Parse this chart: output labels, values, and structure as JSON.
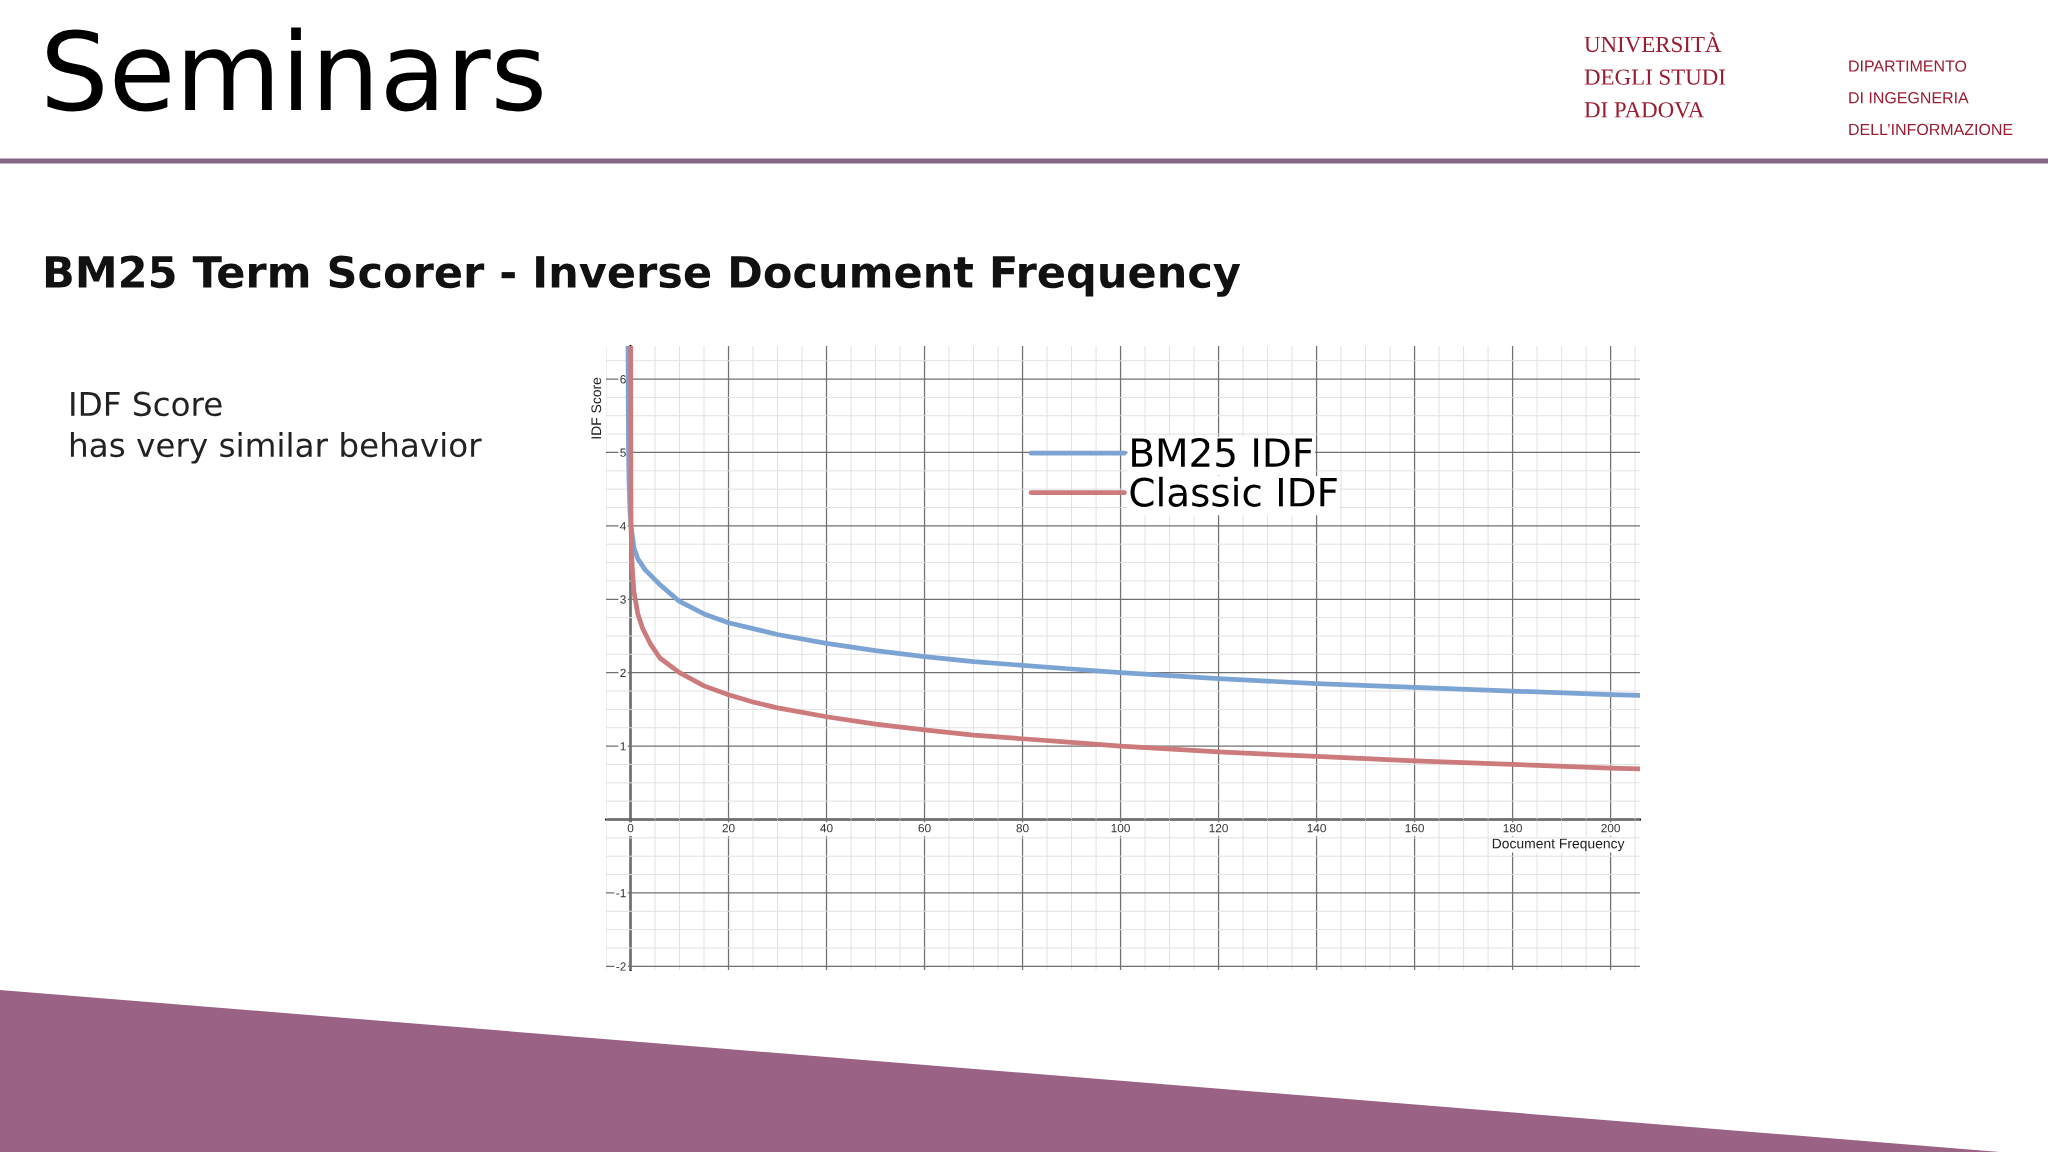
{
  "chart_data": {
    "type": "line",
    "title": "BM25 Term Scorer - Inverse Document Frequency",
    "xlabel": "Document Frequency",
    "ylabel": "IDF Score",
    "annotations": [
      "Seminars",
      "UNIVERSITÀ\nDEGLI STUDI\nDI PADOVA",
      "DIPARTIMENTO\nDI INGEGNERIA\nDELL’INFORMAZIONE",
      "IDF Score\nhas very similar behavior"
    ],
    "series": [
      {
        "name": "BM25 IDF",
        "color": "#7ba3d4",
        "x": [
          -0.5,
          -0.45,
          -0.4,
          -0.3,
          -0.1,
          0.1,
          0.7,
          1.5,
          3,
          6,
          10,
          15,
          20,
          25,
          30,
          40,
          50,
          60,
          70,
          80,
          90,
          100,
          120,
          140,
          160,
          180,
          200,
          206
        ],
        "values": [
          6.45,
          5.5,
          5.0,
          4.6,
          4.2,
          4.0,
          3.7,
          3.55,
          3.4,
          3.2,
          2.97,
          2.8,
          2.68,
          2.6,
          2.52,
          2.4,
          2.3,
          2.22,
          2.15,
          2.1,
          2.05,
          2.0,
          1.92,
          1.85,
          1.8,
          1.75,
          1.7,
          1.69
        ]
      },
      {
        "name": "Classic IDF",
        "color": "#cc7a7c",
        "x": [
          0.05,
          0.07,
          0.1,
          0.3,
          0.7,
          1.5,
          2.5,
          4,
          6,
          8,
          10,
          15,
          20,
          25,
          30,
          40,
          50,
          60,
          70,
          80,
          90,
          100,
          120,
          140,
          160,
          180,
          200,
          206
        ],
        "values": [
          6.45,
          5.2,
          4.0,
          3.5,
          3.1,
          2.8,
          2.6,
          2.4,
          2.2,
          2.1,
          2.0,
          1.82,
          1.7,
          1.6,
          1.52,
          1.4,
          1.3,
          1.22,
          1.15,
          1.1,
          1.05,
          1.0,
          0.92,
          0.86,
          0.8,
          0.75,
          0.7,
          0.69
        ]
      }
    ],
    "xlim": [
      -5,
      206
    ],
    "ylim": [
      -2.05,
      6.45
    ],
    "xticks": [
      0,
      20,
      40,
      60,
      80,
      100,
      120,
      140,
      160,
      180,
      200
    ],
    "yticks": [
      -2,
      -1,
      {
        "value": 0,
        "label": null
      },
      1,
      2,
      3,
      4,
      5,
      6
    ],
    "grid": true,
    "legend": "top",
    "line_style": "solid"
  }
}
